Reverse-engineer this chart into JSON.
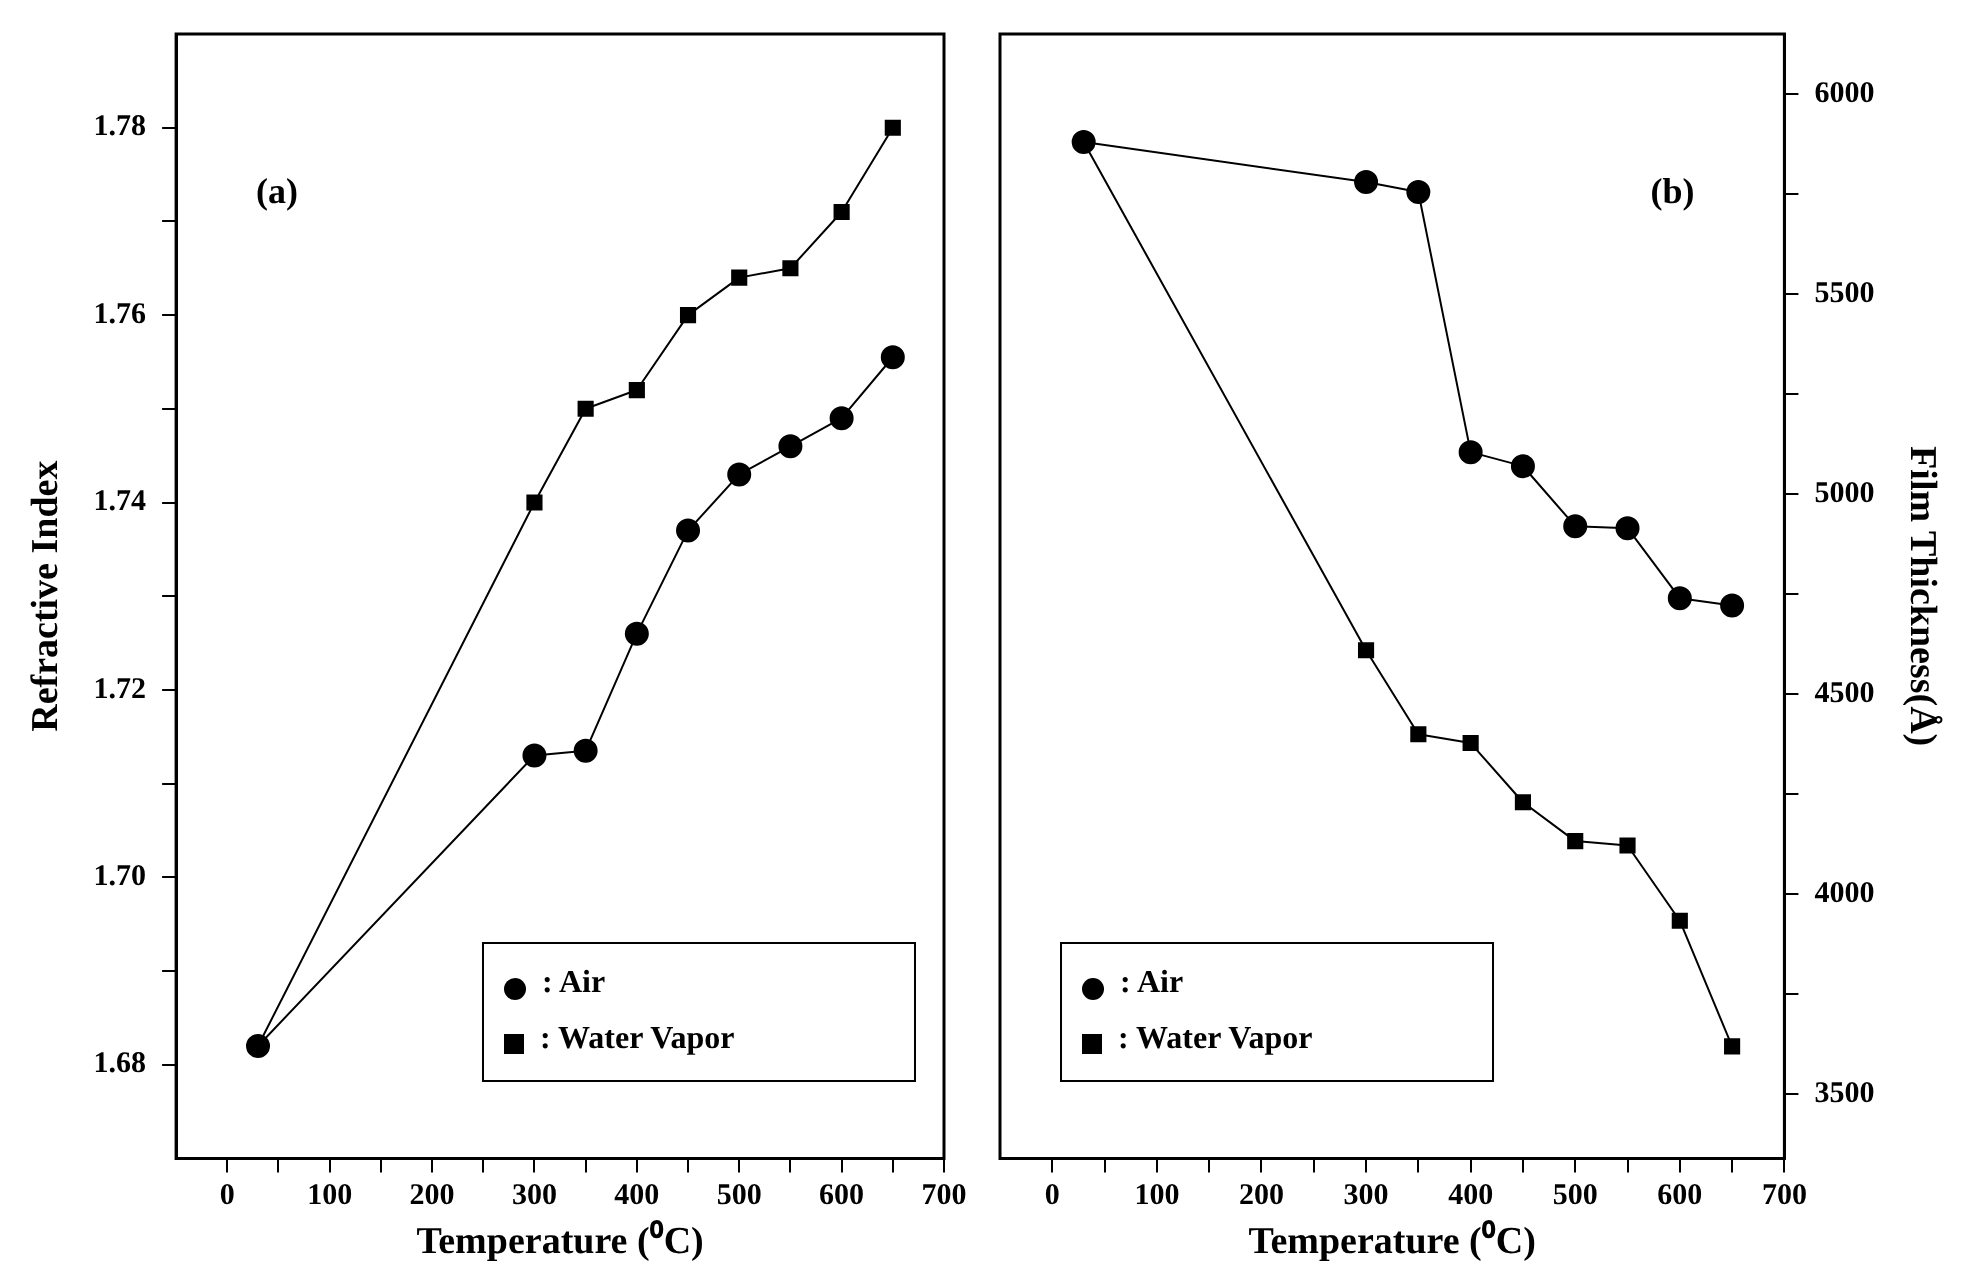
{
  "chart_data": [
    {
      "type": "line",
      "xlabel": "Temperature (⁰C)",
      "ylabel": "Refractive Index",
      "annotations": [
        "(a)"
      ],
      "x": [
        30,
        300,
        350,
        400,
        450,
        500,
        550,
        600,
        650
      ],
      "series": [
        {
          "name": ": Air",
          "color": "#000000",
          "marker": "circle",
          "values": [
            1.682,
            1.713,
            1.7135,
            1.726,
            1.737,
            1.743,
            1.746,
            1.749,
            1.7555
          ]
        },
        {
          "name": ": Water Vapor",
          "color": "#000000",
          "marker": "square",
          "values": [
            1.682,
            1.74,
            1.75,
            1.752,
            1.76,
            1.764,
            1.765,
            1.771,
            1.78
          ]
        }
      ],
      "xlim": [
        -50,
        700
      ],
      "xticks": [
        0,
        {
          "value": 50,
          "label": null
        },
        100,
        {
          "value": 150,
          "label": null
        },
        200,
        {
          "value": 250,
          "label": null
        },
        300,
        {
          "value": 350,
          "label": null
        },
        400,
        {
          "value": 450,
          "label": null
        },
        500,
        {
          "value": 550,
          "label": null
        },
        600,
        {
          "value": 650,
          "label": null
        },
        700
      ],
      "ylim": [
        1.67,
        1.79
      ],
      "yticks": [
        1.68,
        {
          "value": 1.69,
          "label": null
        },
        {
          "value": 1.7,
          "label": "1.70"
        },
        {
          "value": 1.71,
          "label": null
        },
        1.72,
        {
          "value": 1.73,
          "label": null
        },
        1.74,
        {
          "value": 1.75,
          "label": null
        },
        1.76,
        {
          "value": 1.77,
          "label": null
        },
        1.78
      ],
      "grid": false,
      "legend": "bottom right",
      "line_style": "solid"
    },
    {
      "type": "line",
      "xlabel": "Temperature (⁰C)",
      "y2label": "Film Thickness(Å)",
      "annotations": [
        "(b)"
      ],
      "x": [
        30,
        300,
        350,
        400,
        450,
        500,
        550,
        600,
        650
      ],
      "series": [
        {
          "name": ": Air",
          "color": "#000000",
          "marker": "circle",
          "axis": "y2",
          "values": [
            5880,
            5780,
            5755,
            5105,
            5070,
            4920,
            4915,
            4740,
            4722
          ]
        },
        {
          "name": ": Water Vapor",
          "color": "#000000",
          "marker": "square",
          "axis": "y2",
          "values": [
            5880,
            4610,
            4400,
            4378,
            4230,
            4133,
            4122,
            3934,
            3620
          ]
        }
      ],
      "xlim": [
        -50,
        700
      ],
      "xticks": [
        0,
        {
          "value": 50,
          "label": null
        },
        100,
        {
          "value": 150,
          "label": null
        },
        200,
        {
          "value": 250,
          "label": null
        },
        300,
        {
          "value": 350,
          "label": null
        },
        400,
        {
          "value": 450,
          "label": null
        },
        500,
        {
          "value": 550,
          "label": null
        },
        600,
        {
          "value": 650,
          "label": null
        },
        700
      ],
      "y2lim": [
        3340,
        6150
      ],
      "y2ticks": [
        3500,
        {
          "value": 3750,
          "label": null
        },
        4000,
        {
          "value": 4250,
          "label": null
        },
        4500,
        {
          "value": 4750,
          "label": null
        },
        5000,
        {
          "value": 5250,
          "label": null
        },
        5500,
        {
          "value": 5750,
          "label": null
        },
        6000
      ],
      "grid": false,
      "legend": "bottom left",
      "line_style": "solid"
    }
  ]
}
